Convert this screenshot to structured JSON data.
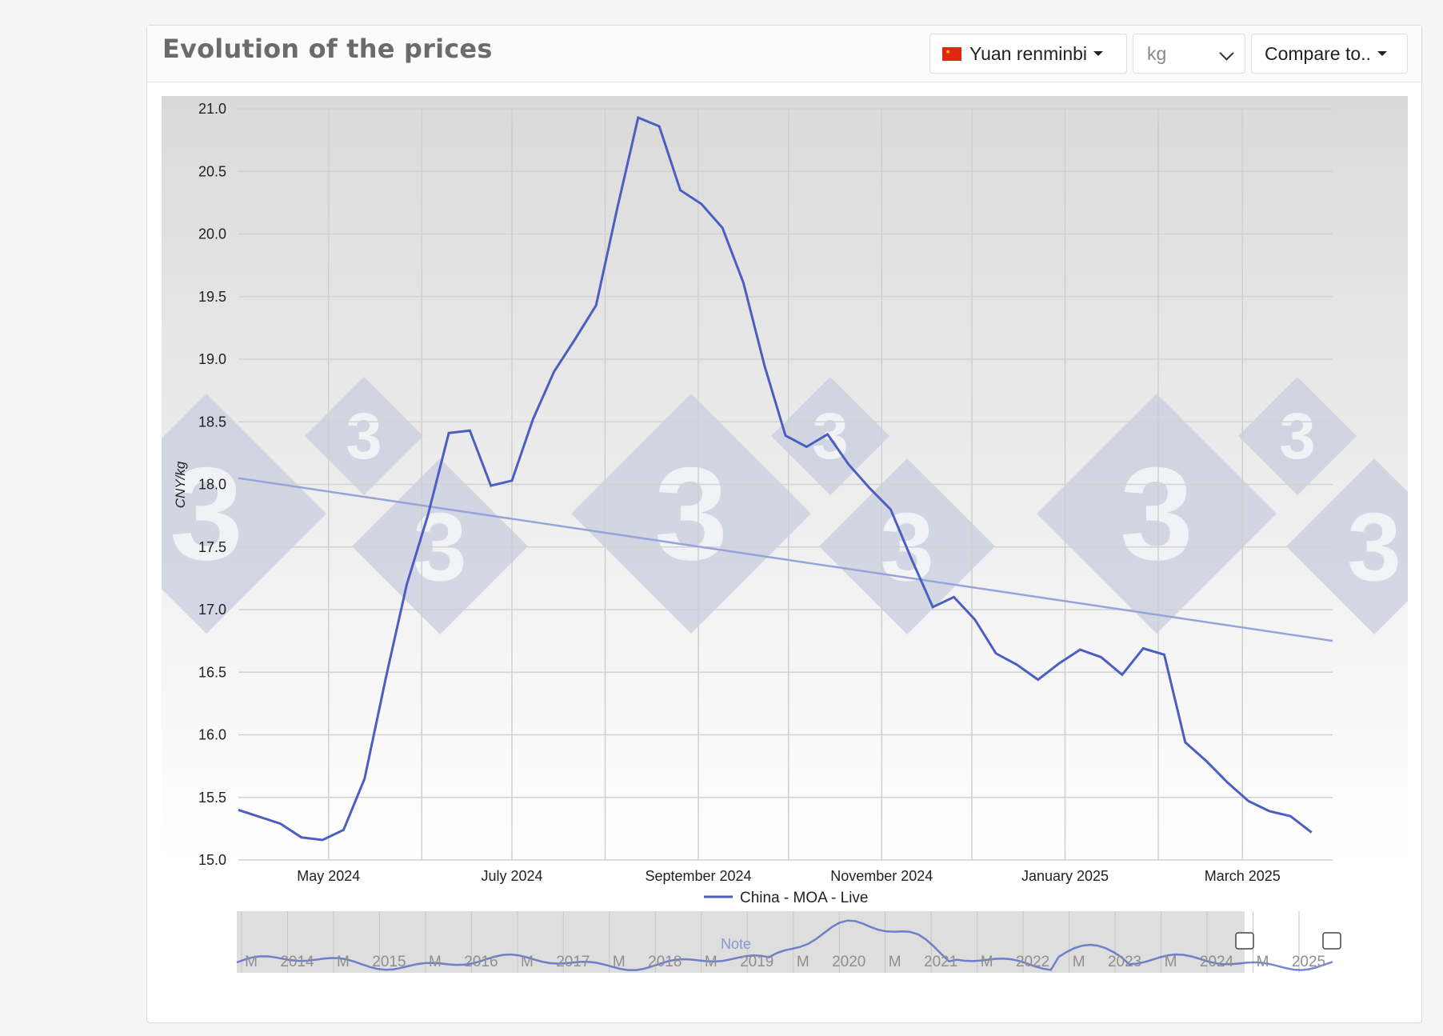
{
  "header": {
    "title": "Evolution of the prices",
    "currency_label": "Yuan renminbi",
    "unit_label": "kg",
    "compare_label": "Compare to.."
  },
  "colors": {
    "series": "#4a5fc1",
    "trend": "#98a4d9",
    "grid": "#cfcfcf",
    "watermark": "#c8cedf"
  },
  "chart_data": {
    "type": "line",
    "ylabel": "CNY/kg",
    "ylim": [
      15.0,
      21.0
    ],
    "yticks": [
      "15.0",
      "15.5",
      "16.0",
      "16.5",
      "17.0",
      "17.5",
      "18.0",
      "18.5",
      "19.0",
      "19.5",
      "20.0",
      "20.5",
      "21.0"
    ],
    "xlim": [
      "2024-04-01",
      "2025-03-31"
    ],
    "xticks": [
      {
        "date": "2024-05-01",
        "label": "May 2024"
      },
      {
        "date": "2024-07-01",
        "label": "July 2024"
      },
      {
        "date": "2024-09-01",
        "label": "September 2024"
      },
      {
        "date": "2024-11-01",
        "label": "November 2024"
      },
      {
        "date": "2025-01-01",
        "label": "January 2025"
      },
      {
        "date": "2025-03-01",
        "label": "March 2025"
      }
    ],
    "series": [
      {
        "name": "China - MOA - Live",
        "points": [
          [
            "2024-04-01",
            15.4
          ],
          [
            "2024-04-15",
            15.29
          ],
          [
            "2024-04-22",
            15.18
          ],
          [
            "2024-04-29",
            15.16
          ],
          [
            "2024-05-06",
            15.24
          ],
          [
            "2024-05-13",
            15.65
          ],
          [
            "2024-05-20",
            16.45
          ],
          [
            "2024-05-27",
            17.2
          ],
          [
            "2024-06-03",
            17.75
          ],
          [
            "2024-06-10",
            18.41
          ],
          [
            "2024-06-17",
            18.43
          ],
          [
            "2024-06-24",
            17.99
          ],
          [
            "2024-07-01",
            18.03
          ],
          [
            "2024-07-08",
            18.52
          ],
          [
            "2024-07-15",
            18.9
          ],
          [
            "2024-07-22",
            19.16
          ],
          [
            "2024-07-29",
            19.43
          ],
          [
            "2024-08-05",
            20.2
          ],
          [
            "2024-08-12",
            20.93
          ],
          [
            "2024-08-19",
            20.86
          ],
          [
            "2024-08-26",
            20.35
          ],
          [
            "2024-09-02",
            20.24
          ],
          [
            "2024-09-09",
            20.05
          ],
          [
            "2024-09-16",
            19.61
          ],
          [
            "2024-09-23",
            18.95
          ],
          [
            "2024-09-30",
            18.39
          ],
          [
            "2024-10-07",
            18.3
          ],
          [
            "2024-10-14",
            18.4
          ],
          [
            "2024-10-21",
            18.16
          ],
          [
            "2024-10-28",
            17.97
          ],
          [
            "2024-11-04",
            17.8
          ],
          [
            "2024-11-11",
            17.4
          ],
          [
            "2024-11-18",
            17.02
          ],
          [
            "2024-11-25",
            17.1
          ],
          [
            "2024-12-02",
            16.92
          ],
          [
            "2024-12-09",
            16.65
          ],
          [
            "2024-12-16",
            16.56
          ],
          [
            "2024-12-23",
            16.44
          ],
          [
            "2024-12-30",
            16.57
          ],
          [
            "2025-01-06",
            16.68
          ],
          [
            "2025-01-13",
            16.62
          ],
          [
            "2025-01-20",
            16.48
          ],
          [
            "2025-01-27",
            16.69
          ],
          [
            "2025-02-03",
            16.64
          ],
          [
            "2025-02-10",
            15.94
          ],
          [
            "2025-02-17",
            15.79
          ],
          [
            "2025-02-24",
            15.62
          ],
          [
            "2025-03-03",
            15.47
          ],
          [
            "2025-03-10",
            15.39
          ],
          [
            "2025-03-17",
            15.35
          ],
          [
            "2025-03-24",
            15.22
          ]
        ]
      }
    ],
    "trend": {
      "start": [
        "2024-04-01",
        18.05
      ],
      "end": [
        "2025-03-31",
        16.75
      ]
    },
    "legend_position": "bottom",
    "grid": true,
    "navigator": {
      "labels": [
        "M",
        "2014",
        "M",
        "2015",
        "M",
        "2016",
        "M",
        "2017",
        "M",
        "2018",
        "M",
        "2019",
        "M",
        "2020",
        "M",
        "2021",
        "M",
        "2022",
        "M",
        "2023",
        "M",
        "2024",
        "M",
        "2025"
      ],
      "note": "Note"
    }
  }
}
